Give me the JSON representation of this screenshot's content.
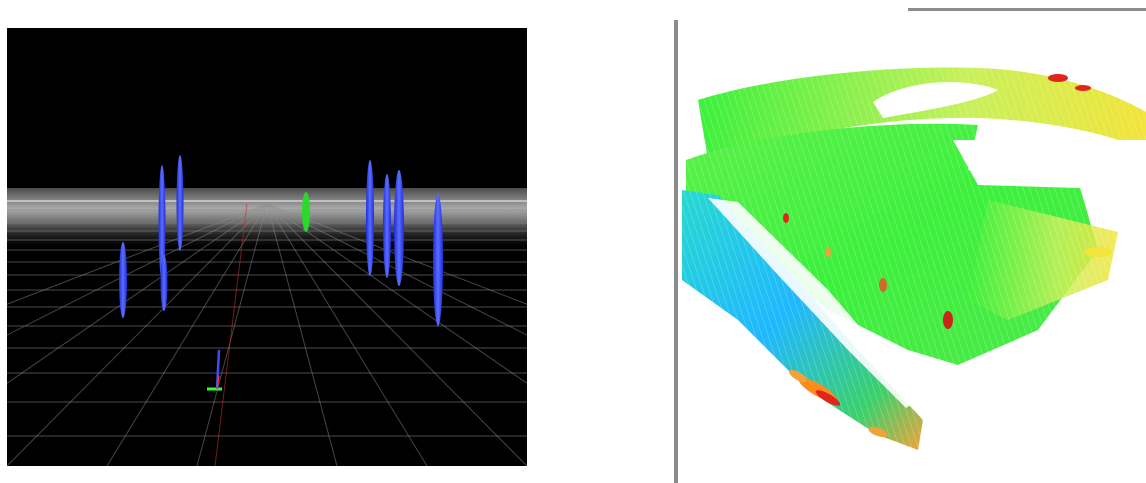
{
  "scene": {
    "left_view": {
      "background": "#000000",
      "grid_color": "#9a9a9a",
      "obstacle_color": "#3a4dff",
      "goal_color": "#2dd82d",
      "axis_colors": {
        "x": "#ff3030",
        "y": "#30ff30",
        "z": "#3a4dff"
      }
    },
    "right_view": {
      "background": "#ffffff",
      "color_scale": [
        "#1fb8ff",
        "#27e6c9",
        "#3cf03c",
        "#a8f23a",
        "#f2e43a",
        "#ff8a1e",
        "#e0261a"
      ]
    }
  }
}
